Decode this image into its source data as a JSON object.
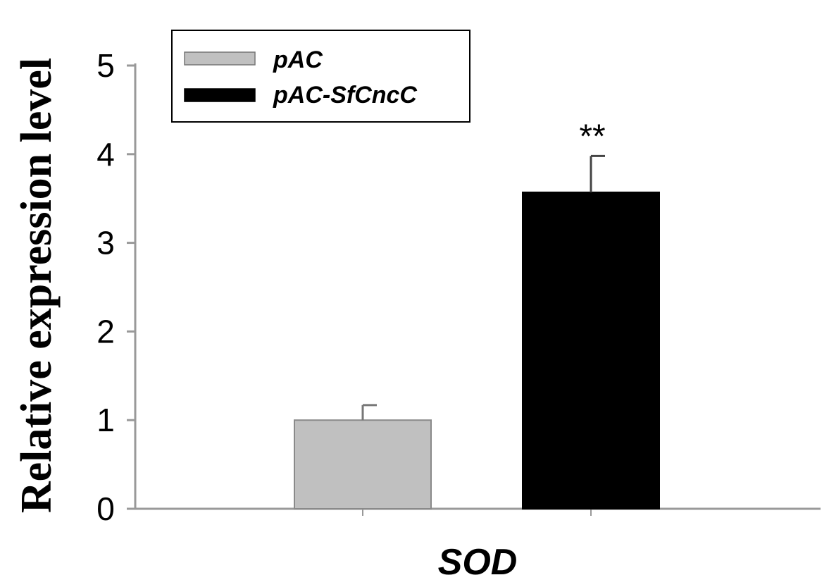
{
  "chart_data": {
    "type": "bar",
    "categories": [
      "SOD"
    ],
    "series": [
      {
        "name": "pAC",
        "values": [
          1.0
        ],
        "error": [
          0.17
        ],
        "color": "#c0c0c0"
      },
      {
        "name": "pAC-SfCncC",
        "values": [
          3.57
        ],
        "error": [
          0.41
        ],
        "color": "#000000"
      }
    ],
    "xlabel": "",
    "ylabel": "Relative expression level",
    "ylim": [
      0,
      5
    ],
    "yticks": [
      "0",
      "1",
      "2",
      "3",
      "4",
      "5"
    ],
    "annotations": [
      {
        "series": "pAC-SfCncC",
        "category": "SOD",
        "text": "**"
      }
    ],
    "legend_position": "top-left",
    "grid": false
  }
}
